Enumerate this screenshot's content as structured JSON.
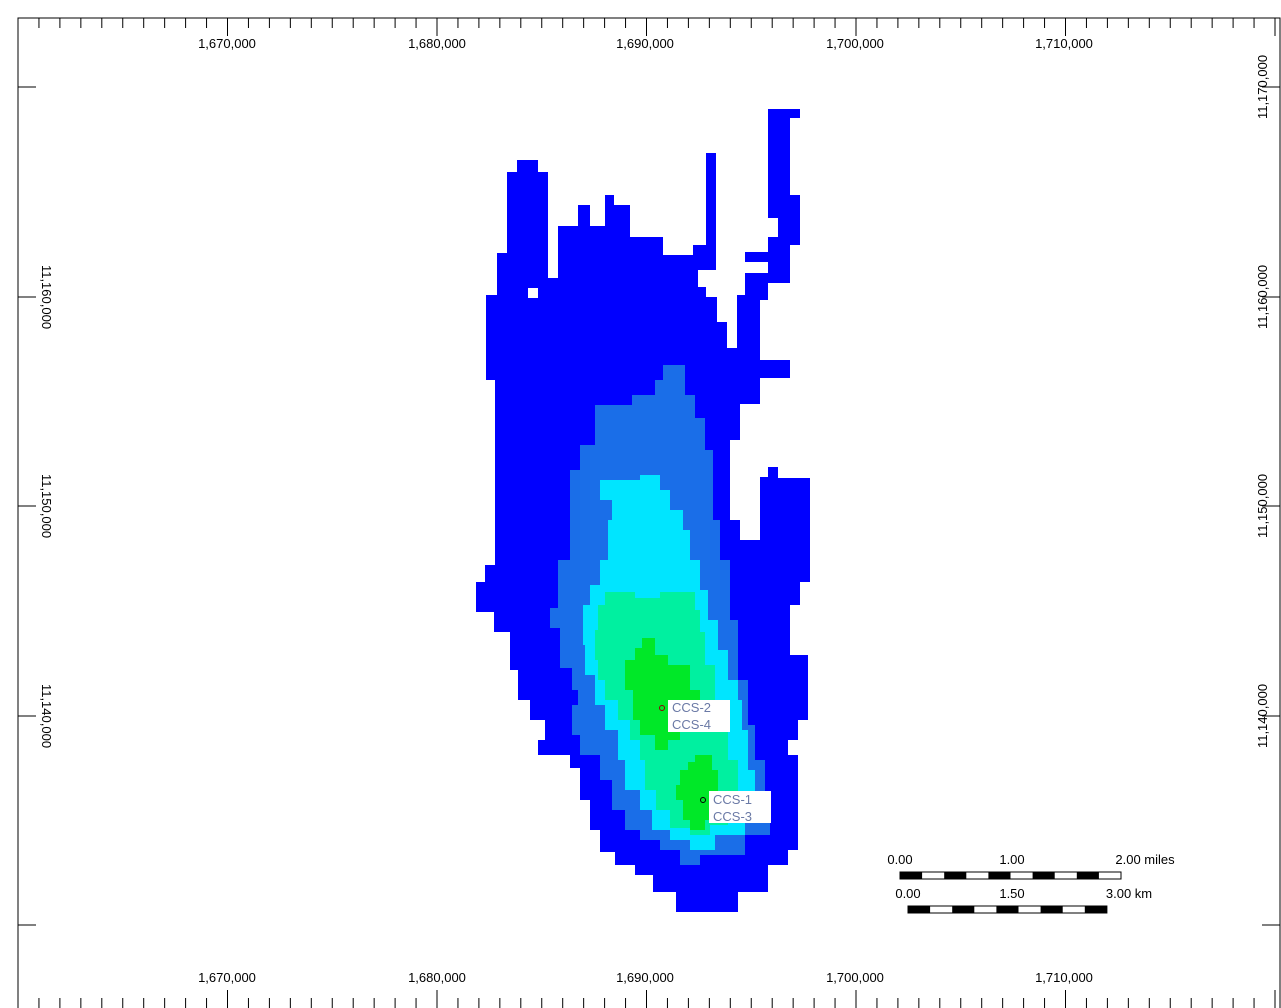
{
  "map": {
    "x_axis": {
      "tick_labels": [
        "1,670,000",
        "1,680,000",
        "1,690,000",
        "1,700,000",
        "1,710,000"
      ],
      "tick_values": [
        1670000,
        1680000,
        1690000,
        1700000,
        1710000
      ]
    },
    "y_axis": {
      "tick_labels": [
        "11,170,000",
        "11,160,000",
        "11,150,000",
        "11,140,000"
      ],
      "tick_values": [
        11170000,
        11160000,
        11150000,
        11140000
      ]
    },
    "wells": [
      {
        "labels": [
          "CCS-2",
          "CCS-4"
        ],
        "x": 1690400,
        "y": 11140400
      },
      {
        "labels": [
          "CCS-1",
          "CCS-3"
        ],
        "x": 1692300,
        "y": 11135800
      }
    ],
    "scale_bar": {
      "miles_labels": [
        "0.00",
        "1.00",
        "2.00 miles"
      ],
      "km_labels": [
        "0.00",
        "1.50",
        "3.00 km"
      ]
    },
    "colors": {
      "level_1": "#0000ff",
      "level_2": "#1a6ee8",
      "level_3": "#00e5ff",
      "level_4": "#00f0a0",
      "level_5": "#00e828",
      "frame": "#000000"
    }
  }
}
